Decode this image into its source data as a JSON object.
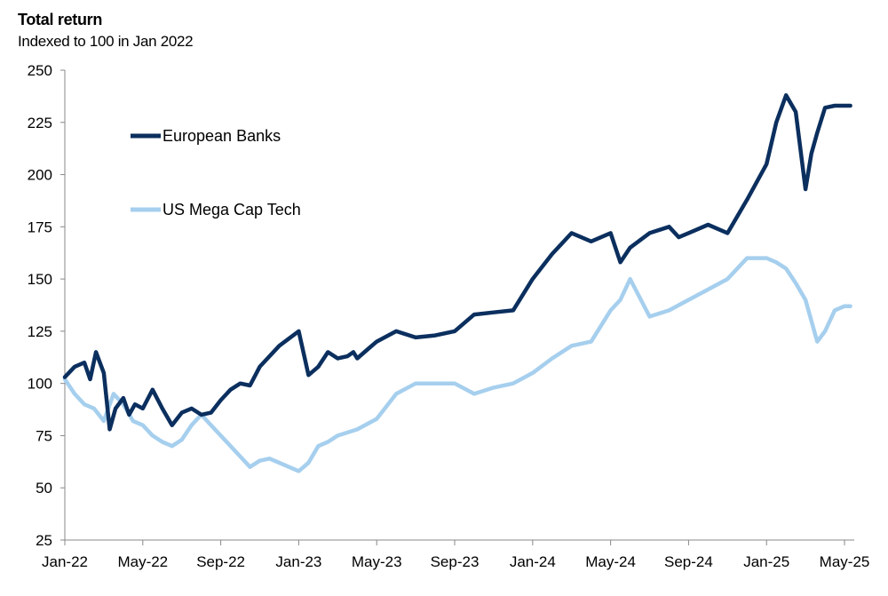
{
  "chart_data": {
    "type": "line",
    "title": "Total return",
    "subtitle": "Indexed to 100 in Jan 2022",
    "xlabel": "",
    "ylabel": "",
    "ylim": [
      25,
      250
    ],
    "yticks": [
      25,
      50,
      75,
      100,
      125,
      150,
      175,
      200,
      225,
      250
    ],
    "xticks": [
      "Jan-22",
      "May-22",
      "Sep-22",
      "Jan-23",
      "May-23",
      "Sep-23",
      "Jan-24",
      "May-24",
      "Sep-24",
      "Jan-25",
      "May-25"
    ],
    "x_unit": "months since Jan-2022",
    "xlim": [
      0,
      40.5
    ],
    "legend_position": "top-left",
    "series": [
      {
        "name": "European Banks",
        "color": "#0b2f5e",
        "x": [
          0,
          0.5,
          1.0,
          1.3,
          1.6,
          2.0,
          2.3,
          2.6,
          3.0,
          3.3,
          3.6,
          4.0,
          4.5,
          5.0,
          5.5,
          6.0,
          6.5,
          7.0,
          7.5,
          8.0,
          8.5,
          9.0,
          9.5,
          10.0,
          11.0,
          12.0,
          12.5,
          13.0,
          13.5,
          14.0,
          14.5,
          14.8,
          15.0,
          15.5,
          16.0,
          17.0,
          18.0,
          19.0,
          20.0,
          21.0,
          22.0,
          23.0,
          24.0,
          25.0,
          26.0,
          27.0,
          28.0,
          28.5,
          29.0,
          30.0,
          31.0,
          31.5,
          32.0,
          33.0,
          34.0,
          35.0,
          36.0,
          36.5,
          37.0,
          37.5,
          38.0,
          38.3,
          38.6,
          39.0,
          39.5,
          40.0,
          40.3
        ],
        "values": [
          103,
          108,
          110,
          102,
          115,
          105,
          78,
          88,
          93,
          85,
          90,
          88,
          97,
          88,
          80,
          86,
          88,
          85,
          86,
          92,
          97,
          100,
          99,
          108,
          118,
          125,
          104,
          108,
          115,
          112,
          113,
          115,
          112,
          116,
          120,
          125,
          122,
          123,
          125,
          133,
          134,
          135,
          150,
          162,
          172,
          168,
          172,
          158,
          165,
          172,
          175,
          170,
          172,
          176,
          172,
          188,
          205,
          225,
          238,
          230,
          193,
          210,
          220,
          232,
          233,
          233,
          233
        ]
      },
      {
        "name": "US Mega Cap Tech",
        "color": "#a6cfee",
        "x": [
          0,
          0.5,
          1.0,
          1.5,
          2.0,
          2.5,
          3.0,
          3.5,
          4.0,
          4.5,
          5.0,
          5.5,
          6.0,
          6.5,
          7.0,
          7.5,
          8.0,
          8.5,
          9.0,
          9.5,
          10.0,
          10.5,
          11.0,
          11.5,
          12.0,
          12.5,
          13.0,
          13.5,
          14.0,
          15.0,
          16.0,
          17.0,
          18.0,
          19.0,
          20.0,
          21.0,
          22.0,
          23.0,
          24.0,
          25.0,
          26.0,
          27.0,
          28.0,
          28.5,
          29.0,
          30.0,
          31.0,
          32.0,
          33.0,
          34.0,
          35.0,
          36.0,
          36.5,
          37.0,
          37.5,
          38.0,
          38.3,
          38.6,
          39.0,
          39.5,
          40.0,
          40.3
        ],
        "values": [
          102,
          95,
          90,
          88,
          82,
          95,
          90,
          82,
          80,
          75,
          72,
          70,
          73,
          80,
          85,
          80,
          75,
          70,
          65,
          60,
          63,
          64,
          62,
          60,
          58,
          62,
          70,
          72,
          75,
          78,
          83,
          95,
          100,
          100,
          100,
          95,
          98,
          100,
          105,
          112,
          118,
          120,
          135,
          140,
          150,
          132,
          135,
          140,
          145,
          150,
          160,
          160,
          158,
          155,
          148,
          140,
          130,
          120,
          125,
          135,
          137,
          137
        ]
      }
    ]
  }
}
